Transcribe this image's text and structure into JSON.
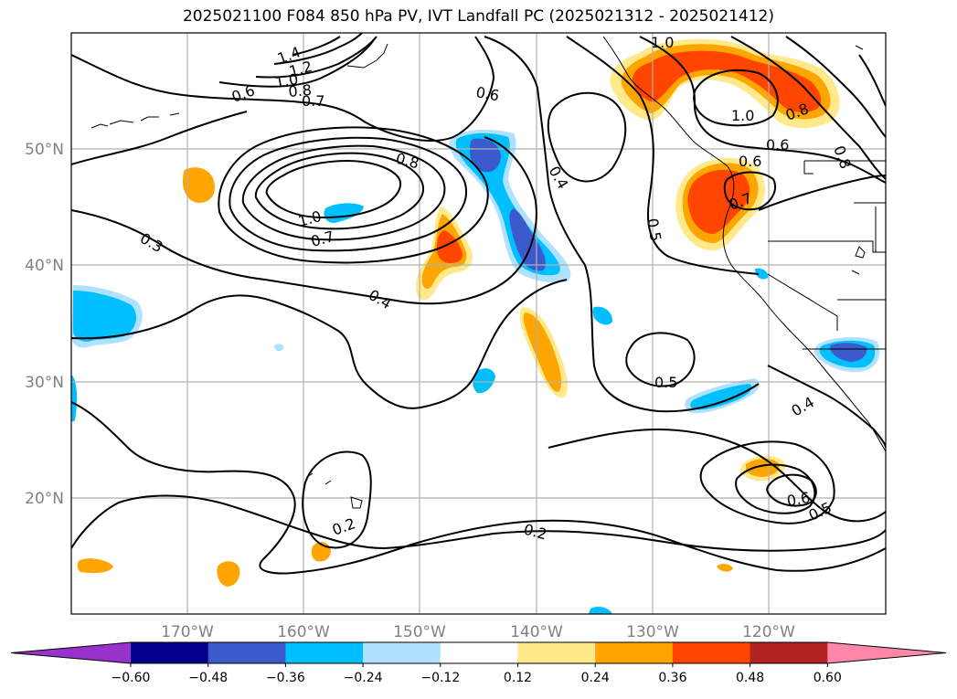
{
  "title": "2025021100 F084 850 hPa PV, IVT Landfall PC (2025021312 - 2025021412)",
  "map": {
    "projection": "PlateCarree",
    "lon_range": [
      -180,
      -110
    ],
    "lat_range": [
      10,
      60
    ],
    "lat_ticks": [
      "50°N",
      "40°N",
      "30°N",
      "20°N"
    ],
    "lon_ticks": [
      "170°W",
      "160°W",
      "150°W",
      "140°W",
      "130°W",
      "120°W"
    ],
    "gridlines": true,
    "coastline_color": "#000000",
    "grid_color": "#b0b0b0"
  },
  "colorbar": {
    "orientation": "horizontal",
    "extend": "both",
    "labels": [
      "−0.60",
      "−0.48",
      "−0.36",
      "−0.24",
      "−0.12",
      "0.12",
      "0.24",
      "0.36",
      "0.48",
      "0.60"
    ],
    "colors": [
      "#9932cc",
      "#00008b",
      "#3b5bcd",
      "#00bfff",
      "#b0e2ff",
      "#ffffff",
      "#ffe98a",
      "#ffa500",
      "#ff4500",
      "#b22222",
      "#ff88aa"
    ]
  },
  "contour_labels": [
    "1.4",
    "1.2",
    "1.0",
    "0.8",
    "0.7",
    "0.6",
    "1.0",
    "0.6",
    "0.8",
    "1.0",
    "0.7",
    "0.8",
    "0.3",
    "0.4",
    "0.4",
    "0.5",
    "0.7",
    "0.6",
    "0.5",
    "0.4",
    "0.2",
    "0.2",
    "0.6",
    "0.5",
    "0.6",
    "1.0",
    "0.8"
  ]
}
